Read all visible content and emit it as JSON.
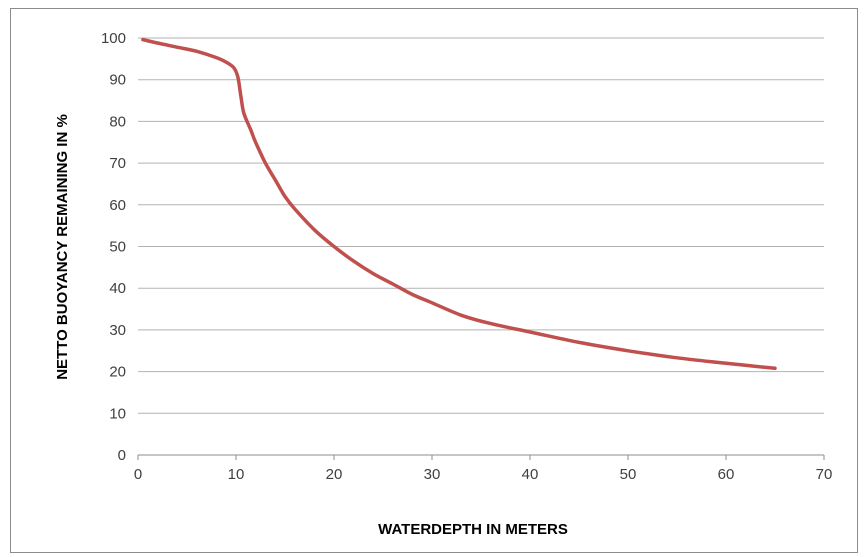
{
  "chart_data": {
    "type": "line",
    "title": "",
    "xlabel": "WATERDEPTH IN METERS",
    "ylabel": "NETTO BUOYANCY REMAINING IN %",
    "xlim": [
      0,
      70
    ],
    "ylim": [
      0,
      100
    ],
    "x_ticks": [
      0,
      10,
      20,
      30,
      40,
      50,
      60,
      70
    ],
    "y_ticks": [
      0,
      10,
      20,
      30,
      40,
      50,
      60,
      70,
      80,
      90,
      100
    ],
    "grid": "horizontal",
    "legend": "none",
    "series": [
      {
        "color": "#c0504d",
        "points": [
          [
            0.5,
            99.6
          ],
          [
            2,
            98.8
          ],
          [
            4,
            97.8
          ],
          [
            6,
            96.8
          ],
          [
            8,
            95.3
          ],
          [
            9,
            94.2
          ],
          [
            9.8,
            92.8
          ],
          [
            10.2,
            90.5
          ],
          [
            10.5,
            86
          ],
          [
            10.8,
            82
          ],
          [
            11.5,
            78
          ],
          [
            12,
            75
          ],
          [
            13,
            70
          ],
          [
            14,
            66
          ],
          [
            15,
            62
          ],
          [
            16,
            59
          ],
          [
            18,
            54
          ],
          [
            20,
            50
          ],
          [
            22,
            46.5
          ],
          [
            24,
            43.5
          ],
          [
            26,
            41
          ],
          [
            28,
            38.5
          ],
          [
            30,
            36.5
          ],
          [
            33,
            33.5
          ],
          [
            36,
            31.5
          ],
          [
            40,
            29.5
          ],
          [
            45,
            27
          ],
          [
            50,
            25
          ],
          [
            55,
            23.3
          ],
          [
            60,
            22
          ],
          [
            65,
            20.8
          ]
        ]
      }
    ]
  }
}
